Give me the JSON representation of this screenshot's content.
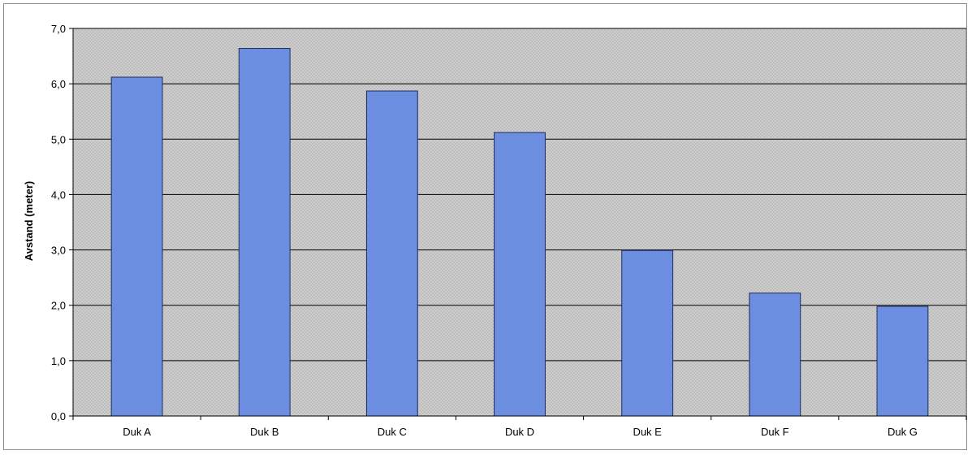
{
  "chart_data": {
    "type": "bar",
    "title": "",
    "xlabel": "",
    "ylabel": "Avstand (meter)",
    "categories": [
      "Duk A",
      "Duk B",
      "Duk C",
      "Duk D",
      "Duk E",
      "Duk F",
      "Duk G"
    ],
    "values": [
      6.12,
      6.64,
      5.87,
      5.12,
      2.99,
      2.22,
      1.98
    ],
    "ylim": [
      0,
      7
    ],
    "yticks": [
      "0,0",
      "1,0",
      "2,0",
      "3,0",
      "4,0",
      "5,0",
      "6,0",
      "7,0"
    ],
    "grid": true,
    "legend": "none",
    "colors": {
      "bar_fill": "#6b8ee0",
      "bar_stroke": "#1f2a5a",
      "plot_background": "#c8c8c8",
      "gridline": "#000000"
    }
  }
}
